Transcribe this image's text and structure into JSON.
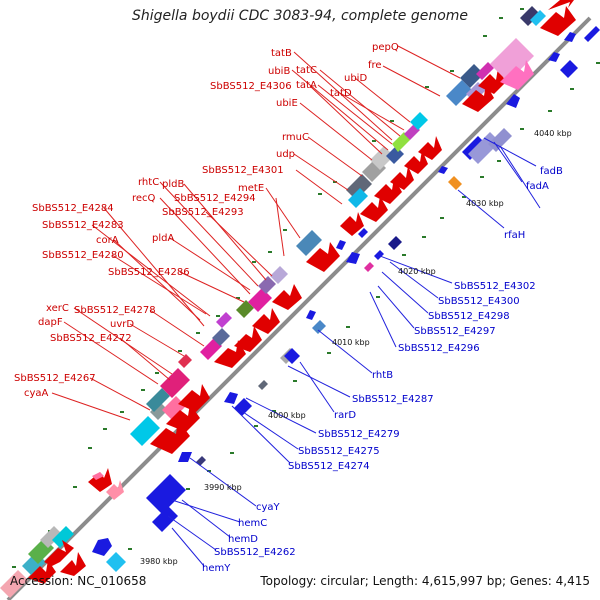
{
  "title": "Shigella boydii CDC 3083-94, complete genome",
  "footer": {
    "accession": "Accession: NC_010658",
    "summary": "Topology: circular; Length: 4,615,997 bp; Genes: 4,415"
  },
  "colors": {
    "backbone": "#9a9a9a",
    "forward_label": "#cc0000",
    "reverse_label": "#0000cc",
    "tick": "#2a7a2a"
  },
  "ticks": [
    "3980 kbp",
    "3990 kbp",
    "4000 kbp",
    "4010 kbp",
    "4020 kbp",
    "4030 kbp",
    "4040 kbp"
  ],
  "forward_labels": [
    "pepQ",
    "fre",
    "tatB",
    "ubiB",
    "tatC",
    "ubiD",
    "SbBS512_E4306",
    "tatA",
    "tatD",
    "ubiE",
    "rmuC",
    "udp",
    "SbBS512_E4301",
    "metE",
    "rhtC",
    "pldB",
    "recQ",
    "SbBS512_E4294",
    "SbBS512_E4293",
    "SbBS512_E4284",
    "SbBS512_E4283",
    "pldA",
    "corA",
    "SbBS512_E4280",
    "SbBS512_E4286",
    "xerC",
    "SbBS512_E4278",
    "dapF",
    "uvrD",
    "SbBS512_E4272",
    "SbBS512_E4267",
    "cyaA"
  ],
  "reverse_labels": [
    "4040 kbp",
    "fadB",
    "fadA",
    "4030 kbp",
    "rfaH",
    "SbBS512_E4302",
    "SbBS512_E4300",
    "SbBS512_E4298",
    "SbBS512_E4297",
    "SbBS512_E4296",
    "rhtB",
    "SbBS512_E4287",
    "rarD",
    "SbBS512_E4279",
    "SbBS512_E4275",
    "SbBS512_E4274",
    "cyaY",
    "hemC",
    "hemD",
    "SbBS512_E4262",
    "hemY"
  ]
}
